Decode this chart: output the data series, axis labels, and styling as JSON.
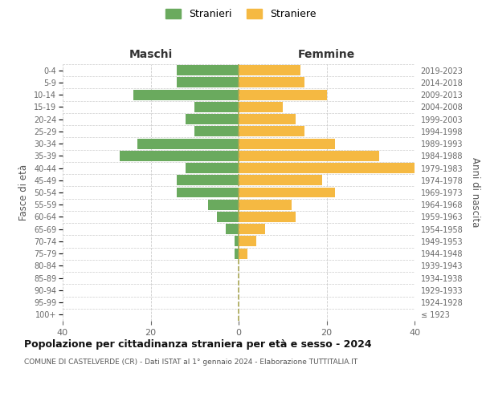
{
  "age_groups": [
    "100+",
    "95-99",
    "90-94",
    "85-89",
    "80-84",
    "75-79",
    "70-74",
    "65-69",
    "60-64",
    "55-59",
    "50-54",
    "45-49",
    "40-44",
    "35-39",
    "30-34",
    "25-29",
    "20-24",
    "15-19",
    "10-14",
    "5-9",
    "0-4"
  ],
  "birth_years": [
    "≤ 1923",
    "1924-1928",
    "1929-1933",
    "1934-1938",
    "1939-1943",
    "1944-1948",
    "1949-1953",
    "1954-1958",
    "1959-1963",
    "1964-1968",
    "1969-1973",
    "1974-1978",
    "1979-1983",
    "1984-1988",
    "1989-1993",
    "1994-1998",
    "1999-2003",
    "2004-2008",
    "2009-2013",
    "2014-2018",
    "2019-2023"
  ],
  "males": [
    0,
    0,
    0,
    0,
    0,
    1,
    1,
    3,
    5,
    7,
    14,
    14,
    12,
    27,
    23,
    10,
    12,
    10,
    24,
    14,
    14
  ],
  "females": [
    0,
    0,
    0,
    0,
    0,
    2,
    4,
    6,
    13,
    12,
    22,
    19,
    40,
    32,
    22,
    15,
    13,
    10,
    20,
    15,
    14
  ],
  "male_color": "#6aaa5e",
  "female_color": "#f5b942",
  "background_color": "#ffffff",
  "grid_color": "#cccccc",
  "title": "Popolazione per cittadinanza straniera per età e sesso - 2024",
  "subtitle": "COMUNE DI CASTELVERDE (CR) - Dati ISTAT al 1° gennaio 2024 - Elaborazione TUTTITALIA.IT",
  "xlabel_left": "Maschi",
  "xlabel_right": "Femmine",
  "ylabel_left": "Fasce di età",
  "ylabel_right": "Anni di nascita",
  "legend_males": "Stranieri",
  "legend_females": "Straniere",
  "xlim": 40,
  "bar_height": 0.85
}
